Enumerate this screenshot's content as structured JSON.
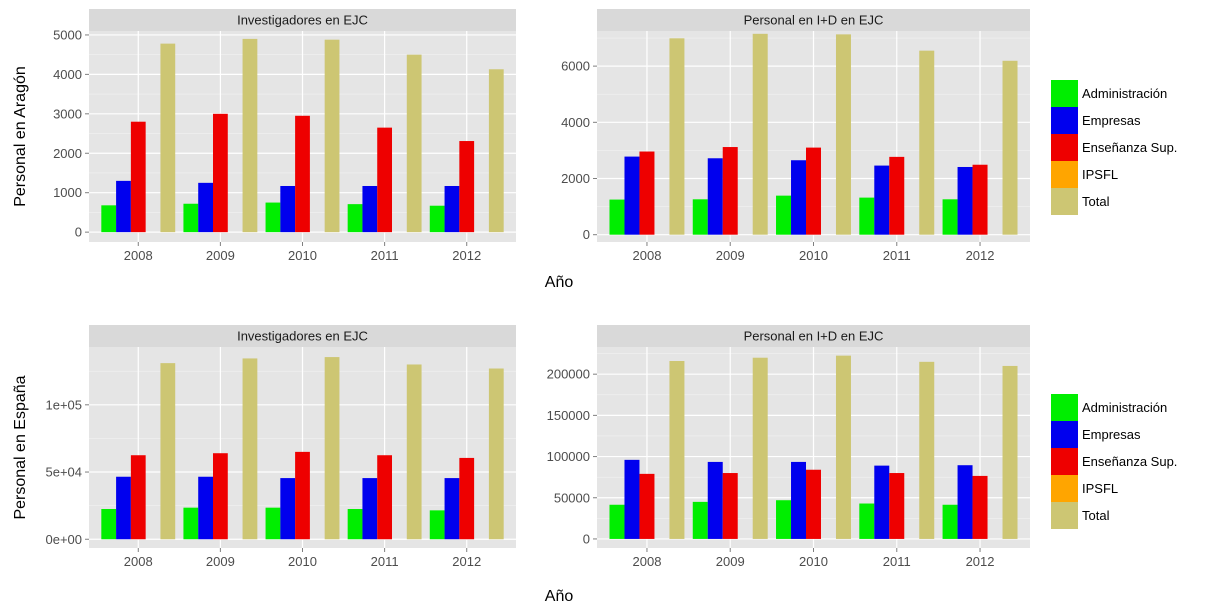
{
  "legend": {
    "entries": [
      {
        "label": "Administración",
        "color": "#00EE00"
      },
      {
        "label": "Empresas",
        "color": "#0000EE"
      },
      {
        "label": "Enseñanza Sup.",
        "color": "#EE0000"
      },
      {
        "label": "IPSFL",
        "color": "#FFA500"
      },
      {
        "label": "Total",
        "color": "#CDC673"
      }
    ]
  },
  "rows": [
    {
      "ylabel": "Personal en Aragón",
      "xlabel": "Año"
    },
    {
      "ylabel": "Personal en España",
      "xlabel": "Año"
    }
  ],
  "chart_data": [
    {
      "type": "bar",
      "title": "Investigadores en EJC",
      "ylabel": "Personal en Aragón",
      "xlabel": "Año",
      "categories": [
        "2008",
        "2009",
        "2010",
        "2011",
        "2012"
      ],
      "ylim": [
        -250,
        5100
      ],
      "yticks": [
        0,
        1000,
        2000,
        3000,
        4000,
        5000
      ],
      "ytick_labels": [
        "0",
        "1000",
        "2000",
        "3000",
        "4000",
        "5000"
      ],
      "series": [
        {
          "name": "Administración",
          "values": [
            680,
            720,
            750,
            710,
            670
          ]
        },
        {
          "name": "Empresas",
          "values": [
            1300,
            1250,
            1170,
            1170,
            1170
          ]
        },
        {
          "name": "Enseñanza Sup.",
          "values": [
            2800,
            3000,
            2950,
            2650,
            2310
          ]
        },
        {
          "name": "IPSFL",
          "values": [
            0,
            0,
            0,
            0,
            0
          ]
        },
        {
          "name": "Total",
          "values": [
            4780,
            4900,
            4880,
            4500,
            4130
          ]
        }
      ]
    },
    {
      "type": "bar",
      "title": "Personal en I+D en EJC",
      "ylabel": "Personal en Aragón",
      "xlabel": "Año",
      "categories": [
        "2008",
        "2009",
        "2010",
        "2011",
        "2012"
      ],
      "ylim": [
        -260,
        7250
      ],
      "yticks": [
        0,
        2000,
        4000,
        6000
      ],
      "ytick_labels": [
        "0",
        "2000",
        "4000",
        "6000"
      ],
      "series": [
        {
          "name": "Administración",
          "values": [
            1250,
            1260,
            1390,
            1320,
            1260
          ]
        },
        {
          "name": "Empresas",
          "values": [
            2780,
            2720,
            2650,
            2460,
            2410
          ]
        },
        {
          "name": "Enseñanza Sup.",
          "values": [
            2960,
            3120,
            3100,
            2770,
            2490
          ]
        },
        {
          "name": "IPSFL",
          "values": [
            0,
            0,
            0,
            0,
            0
          ]
        },
        {
          "name": "Total",
          "values": [
            6990,
            7150,
            7130,
            6550,
            6190
          ]
        }
      ]
    },
    {
      "type": "bar",
      "title": "Investigadores en EJC",
      "ylabel": "Personal en España",
      "xlabel": "Año",
      "categories": [
        "2008",
        "2009",
        "2010",
        "2011",
        "2012"
      ],
      "ylim": [
        -6500,
        143000
      ],
      "yticks": [
        0,
        50000,
        100000
      ],
      "ytick_labels": [
        "0e+00",
        "5e+04",
        "1e+05"
      ],
      "series": [
        {
          "name": "Administración",
          "values": [
            22500,
            23500,
            23500,
            22500,
            21500
          ]
        },
        {
          "name": "Empresas",
          "values": [
            46500,
            46500,
            45500,
            45500,
            45500
          ]
        },
        {
          "name": "Enseñanza Sup.",
          "values": [
            62500,
            64000,
            65000,
            62500,
            60500
          ]
        },
        {
          "name": "IPSFL",
          "values": [
            0,
            0,
            0,
            0,
            0
          ]
        },
        {
          "name": "Total",
          "values": [
            131000,
            134500,
            135500,
            130000,
            127000
          ]
        }
      ]
    },
    {
      "type": "bar",
      "title": "Personal en I+D en EJC",
      "ylabel": "Personal en España",
      "xlabel": "Año",
      "categories": [
        "2008",
        "2009",
        "2010",
        "2011",
        "2012"
      ],
      "ylim": [
        -11000,
        233000
      ],
      "yticks": [
        0,
        50000,
        100000,
        150000,
        200000
      ],
      "ytick_labels": [
        "0",
        "50000",
        "100000",
        "150000",
        "200000"
      ],
      "series": [
        {
          "name": "Administración",
          "values": [
            41500,
            45000,
            47000,
            43000,
            41500
          ]
        },
        {
          "name": "Empresas",
          "values": [
            96000,
            93500,
            93500,
            89000,
            89500
          ]
        },
        {
          "name": "Enseñanza Sup.",
          "values": [
            79000,
            80000,
            84000,
            80000,
            76500
          ]
        },
        {
          "name": "IPSFL",
          "values": [
            0,
            0,
            0,
            0,
            0
          ]
        },
        {
          "name": "Total",
          "values": [
            216000,
            220000,
            222500,
            215000,
            210000
          ]
        }
      ]
    }
  ]
}
